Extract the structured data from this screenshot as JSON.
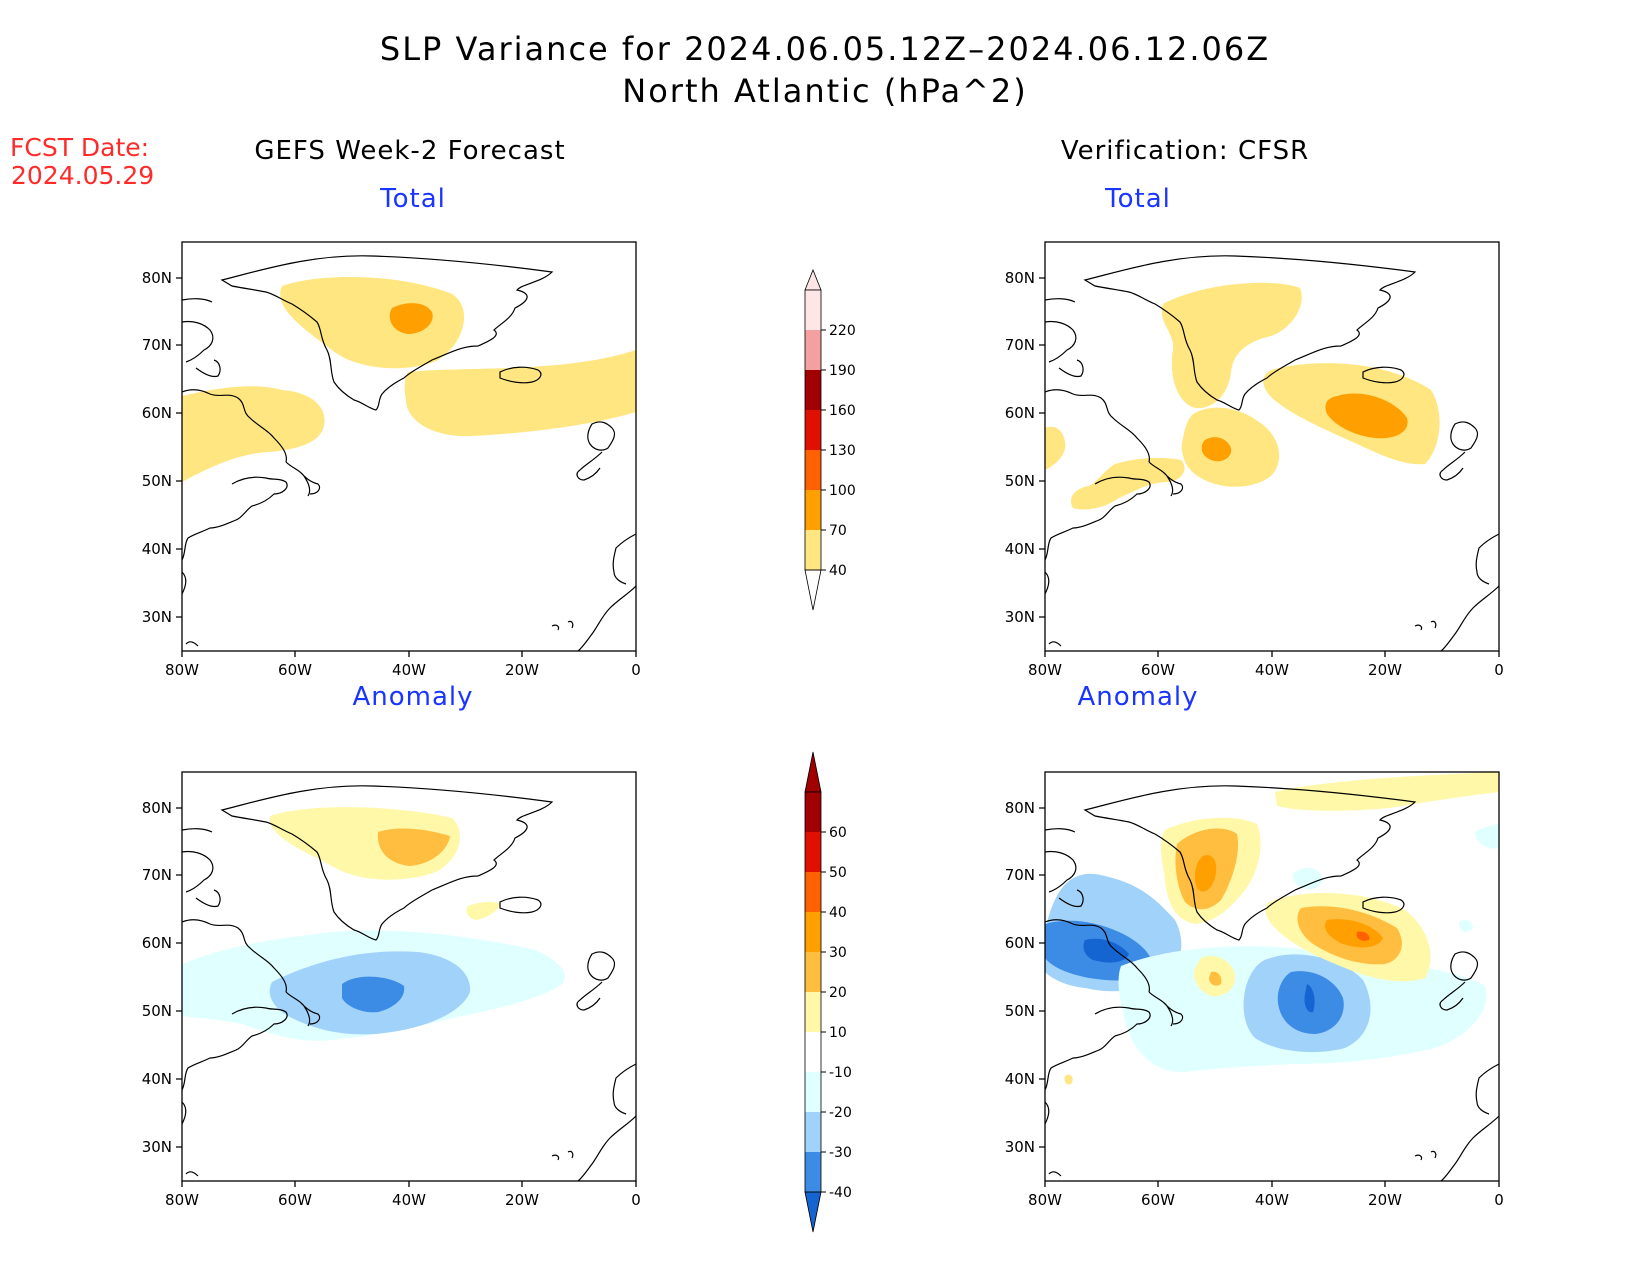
{
  "title": {
    "line1": "SLP Variance for 2024.06.05.12Z–2024.06.12.06Z",
    "line2": "North Atlantic (hPa^2)"
  },
  "fcst_date": {
    "label": "FCST Date:",
    "value": "2024.05.29"
  },
  "columns": {
    "left": "GEFS Week-2 Forecast",
    "right": "Verification: CFSR"
  },
  "panels": {
    "top_left_title": "Total",
    "top_right_title": "Total",
    "bottom_left_title": "Anomaly",
    "bottom_right_title": "Anomaly"
  },
  "axes": {
    "lon_ticks": [
      "80W",
      "60W",
      "40W",
      "20W",
      "0"
    ],
    "lat_ticks": [
      "80N",
      "70N",
      "60N",
      "50N",
      "40N",
      "30N"
    ]
  },
  "colorbar_total": {
    "labels": [
      "220",
      "190",
      "160",
      "130",
      "100",
      "70",
      "40"
    ],
    "colors": [
      "#ffe6e6",
      "#f4a0a0",
      "#a00000",
      "#e01000",
      "#ff6000",
      "#ffa000",
      "#ffe680"
    ]
  },
  "colorbar_anomaly": {
    "labels": [
      "60",
      "50",
      "40",
      "30",
      "20",
      "10",
      "-10",
      "-20",
      "-30",
      "-40"
    ],
    "colors": [
      "#a00000",
      "#e01000",
      "#ff6000",
      "#ffa000",
      "#ffbe40",
      "#fff8a8",
      "#ffffff",
      "#e0ffff",
      "#a0d2fa",
      "#3c8ce6",
      "#1464d2"
    ]
  }
}
